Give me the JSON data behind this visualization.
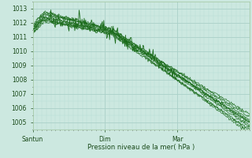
{
  "title": "",
  "xlabel": "Pression niveau de la mer( hPa )",
  "ylabel": "",
  "xlim": [
    0,
    96
  ],
  "ylim": [
    1004.5,
    1013.5
  ],
  "yticks": [
    1005,
    1006,
    1007,
    1008,
    1009,
    1010,
    1011,
    1012,
    1013
  ],
  "xtick_positions": [
    0,
    32,
    64
  ],
  "xtick_labels": [
    "Santun",
    "Dim",
    "Mar"
  ],
  "bg_color": "#cce8e0",
  "grid_color_major": "#aad0c8",
  "grid_color_minor": "#b8dcd4",
  "line_color": "#1a6b1a",
  "n_steps": 96,
  "figwidth": 3.2,
  "figheight": 2.0,
  "dpi": 100
}
